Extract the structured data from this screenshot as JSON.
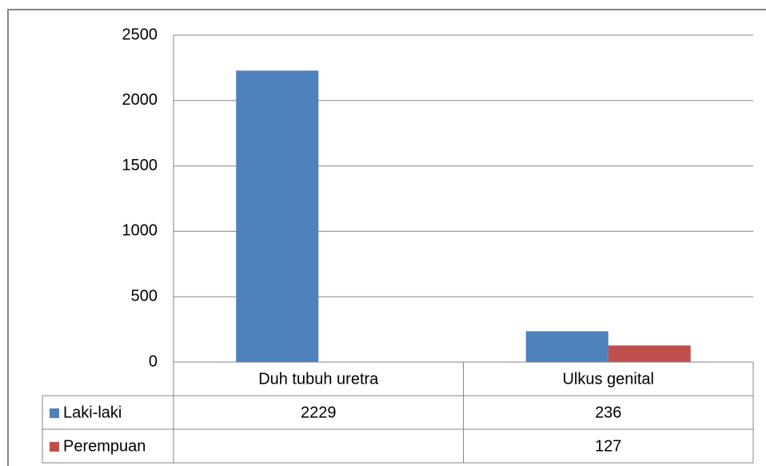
{
  "chart_data": {
    "type": "bar",
    "categories": [
      "Duh tubuh uretra",
      "Ulkus genital"
    ],
    "series": [
      {
        "name": "Laki-laki",
        "color": "#4f81bd",
        "values": [
          2229,
          236
        ]
      },
      {
        "name": "Perempuan",
        "color": "#c0504d",
        "values": [
          null,
          127
        ]
      }
    ],
    "ylim": [
      0,
      2500
    ],
    "yticks": [
      0,
      500,
      1000,
      1500,
      2000,
      2500
    ],
    "grid": true,
    "data_table": true
  }
}
